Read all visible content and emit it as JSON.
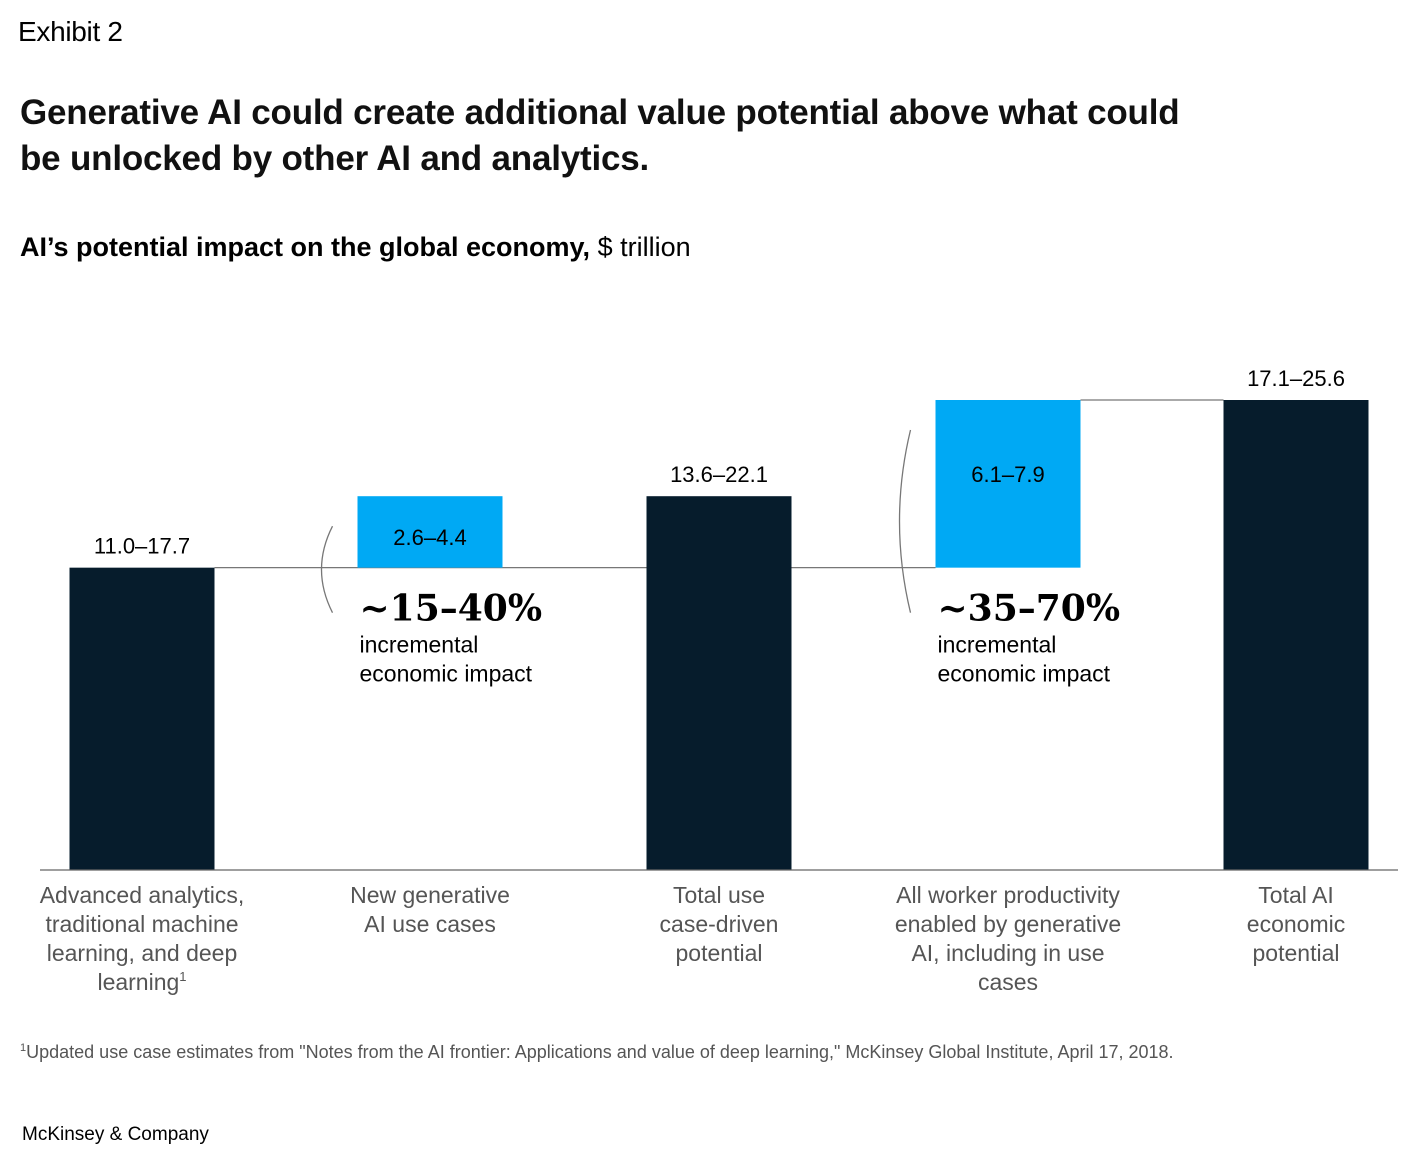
{
  "exhibit_label": "Exhibit 2",
  "headline": "Generative AI could create additional value potential above what could be unlocked by other AI and analytics.",
  "subtitle": {
    "bold": "AI’s potential impact on the global economy,",
    "unit": "$ trillion"
  },
  "colors": {
    "dark_bar": "#061c2c",
    "blue_bar": "#00a9f4",
    "axis": "#666666",
    "connector": "#777777",
    "category_text": "#555555"
  },
  "chart_data": {
    "type": "bar",
    "subtype": "waterfall",
    "categories": [
      "Advanced analytics, traditional machine learning, and deep learning",
      "New generative AI use cases",
      "Total use case-driven potential",
      "All worker productivity enabled by generative AI, including in use cases",
      "Total AI economic potential"
    ],
    "category_lines": [
      [
        "Advanced analytics,",
        "traditional machine",
        "learning, and deep",
        "learning"
      ],
      [
        "New generative",
        "AI use cases"
      ],
      [
        "Total use",
        "case-driven",
        "potential"
      ],
      [
        "All worker productivity",
        "enabled by generative",
        "AI, including in use",
        "cases"
      ],
      [
        "Total AI",
        "economic",
        "potential"
      ]
    ],
    "category_footnote_marks": [
      "1",
      "",
      "",
      "",
      ""
    ],
    "bars": [
      {
        "label": "11.0–17.7",
        "kind": "total",
        "low": 0,
        "high": 11.0
      },
      {
        "label": "2.6–4.4",
        "kind": "increment",
        "low": 11.0,
        "high": 13.6
      },
      {
        "label": "13.6–22.1",
        "kind": "total",
        "low": 0,
        "high": 13.6
      },
      {
        "label": "6.1–7.9",
        "kind": "increment",
        "low": 11.0,
        "high": 17.1
      },
      {
        "label": "17.1–25.6",
        "kind": "total",
        "low": 0,
        "high": 17.1
      }
    ],
    "annotations": [
      {
        "big": "~15–40%",
        "small": [
          "incremental",
          "economic impact"
        ]
      },
      {
        "big": "~35–70%",
        "small": [
          "incremental",
          "economic impact"
        ]
      }
    ],
    "ylim": [
      0,
      17.1
    ]
  },
  "footnote": {
    "mark": "1",
    "text": "Updated use case estimates from \"Notes from the AI frontier: Applications and value of deep learning,\" McKinsey Global Institute, April 17, 2018."
  },
  "brand": "McKinsey & Company"
}
